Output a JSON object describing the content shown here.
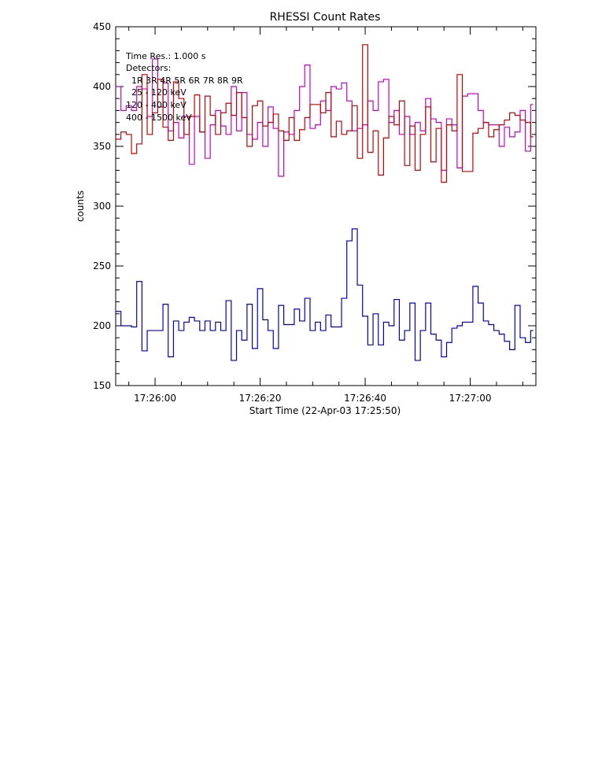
{
  "chart_data": {
    "type": "line",
    "title": "RHESSI Count Rates",
    "xlabel": "Start Time (22-Apr-03 17:25:50)",
    "ylabel": "counts",
    "x_unit": "seconds after 17:25:50",
    "xlim": [
      0,
      80
    ],
    "ylim": [
      150,
      450
    ],
    "x_ticks": [
      {
        "value": 7.5,
        "label": "17:26:00"
      },
      {
        "value": 27.5,
        "label": "17:26:20"
      },
      {
        "value": 47.5,
        "label": "17:26:40"
      },
      {
        "value": 67.5,
        "label": "17:27:00"
      }
    ],
    "y_ticks": [
      150,
      200,
      250,
      300,
      350,
      400,
      450
    ],
    "legend_lines": {
      "time_res": "Time Res.: 1.000 s",
      "detectors_label": "Detectors:",
      "detectors": "1R 3R 4R 5R 6R 7R 8R 9R"
    },
    "series": [
      {
        "name": "25 - 120 keV",
        "color": "#0000cc",
        "step": 1,
        "x_start": 0,
        "values": [
          212,
          200,
          200,
          199,
          237,
          179,
          196,
          196,
          196,
          218,
          174,
          204,
          196,
          203,
          207,
          204,
          196,
          204,
          196,
          203,
          196,
          221,
          171,
          196,
          188,
          218,
          181,
          231,
          205,
          196,
          181,
          217,
          201,
          201,
          214,
          204,
          223,
          196,
          203,
          196,
          209,
          199,
          199,
          223,
          271,
          281,
          234,
          208,
          184,
          210,
          184,
          203,
          200,
          222,
          188,
          196,
          219,
          171,
          196,
          219,
          193,
          188,
          174,
          186,
          198,
          200,
          203,
          203,
          233,
          219,
          204,
          201,
          196,
          193,
          187,
          180,
          217,
          190,
          186,
          196
        ],
        "end": 79.5
      },
      {
        "name": "120 - 400 keV",
        "color": "#cc00cc",
        "step": 1,
        "x_start": 0,
        "values": [
          400,
          380,
          384,
          380,
          400,
          398,
          375,
          423,
          383,
          403,
          363,
          370,
          357,
          375,
          335,
          375,
          362,
          340,
          368,
          380,
          367,
          360,
          400,
          363,
          395,
          360,
          356,
          370,
          350,
          383,
          365,
          325,
          362,
          360,
          380,
          400,
          418,
          365,
          368,
          388,
          380,
          400,
          398,
          403,
          388,
          363,
          365,
          368,
          388,
          380,
          404,
          406,
          370,
          380,
          360,
          375,
          360,
          370,
          363,
          390,
          373,
          370,
          330,
          373,
          368,
          332,
          392,
          394,
          394,
          380,
          370,
          368,
          368,
          350,
          366,
          358,
          362,
          380,
          346,
          385
        ],
        "end": 79.5
      },
      {
        "name": "400 - 1500 keV",
        "color": "#cc0000",
        "step": 1,
        "x_start": 0,
        "values": [
          356,
          362,
          360,
          344,
          352,
          410,
          360,
          378,
          406,
          366,
          355,
          404,
          390,
          360,
          375,
          393,
          362,
          392,
          376,
          360,
          378,
          386,
          376,
          395,
          374,
          350,
          384,
          388,
          367,
          370,
          377,
          363,
          355,
          374,
          355,
          364,
          374,
          385,
          385,
          378,
          395,
          358,
          371,
          360,
          363,
          384,
          340,
          435,
          345,
          363,
          326,
          357,
          375,
          368,
          388,
          334,
          367,
          330,
          360,
          383,
          337,
          365,
          320,
          368,
          363,
          410,
          329,
          329,
          361,
          365,
          370,
          358,
          364,
          368,
          372,
          378,
          376,
          372,
          370,
          358
        ],
        "end": 79.5
      }
    ],
    "grid": false,
    "legend_position": "top-left"
  }
}
